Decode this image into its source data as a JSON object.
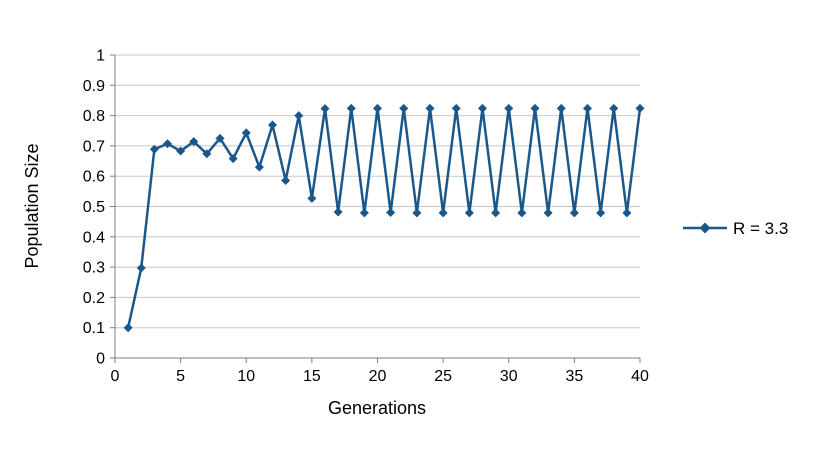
{
  "chart_data": {
    "type": "line",
    "title": "",
    "xlabel": "Generations",
    "ylabel": "Population Size",
    "xlim": [
      0,
      40
    ],
    "ylim": [
      0,
      1
    ],
    "x": [
      1,
      2,
      3,
      4,
      5,
      6,
      7,
      8,
      9,
      10,
      11,
      12,
      13,
      14,
      15,
      16,
      17,
      18,
      19,
      20,
      21,
      22,
      23,
      24,
      25,
      26,
      27,
      28,
      29,
      30,
      31,
      32,
      33,
      34,
      35,
      36,
      37,
      38,
      39,
      40
    ],
    "series": [
      {
        "name": "R = 3.3",
        "values": [
          0.1,
          0.297,
          0.689,
          0.707,
          0.683,
          0.714,
          0.674,
          0.725,
          0.658,
          0.743,
          0.63,
          0.769,
          0.586,
          0.8,
          0.527,
          0.823,
          0.482,
          0.824,
          0.479,
          0.824,
          0.48,
          0.824,
          0.479,
          0.824,
          0.479,
          0.824,
          0.479,
          0.824,
          0.479,
          0.824,
          0.479,
          0.824,
          0.479,
          0.824,
          0.479,
          0.824,
          0.479,
          0.824,
          0.479,
          0.824
        ]
      }
    ],
    "x_ticks": [
      0,
      5,
      10,
      15,
      20,
      25,
      30,
      35,
      40
    ],
    "x_tick_labels": [
      "0",
      "5",
      "10",
      "15",
      "20",
      "25",
      "30",
      "35",
      "40"
    ],
    "y_ticks": [
      0,
      0.1,
      0.2,
      0.3,
      0.4,
      0.5,
      0.6,
      0.7,
      0.8,
      0.9,
      1
    ],
    "y_tick_labels": [
      "0",
      "0.1",
      "0.2",
      "0.3",
      "0.4",
      "0.5",
      "0.6",
      "0.7",
      "0.8",
      "0.9",
      "1"
    ],
    "grid": "horizontal",
    "legend_position": "right",
    "line_color": "#1A578A",
    "marker": "diamond",
    "grid_color": "#C8C8C8",
    "axis_color": "#808080"
  }
}
